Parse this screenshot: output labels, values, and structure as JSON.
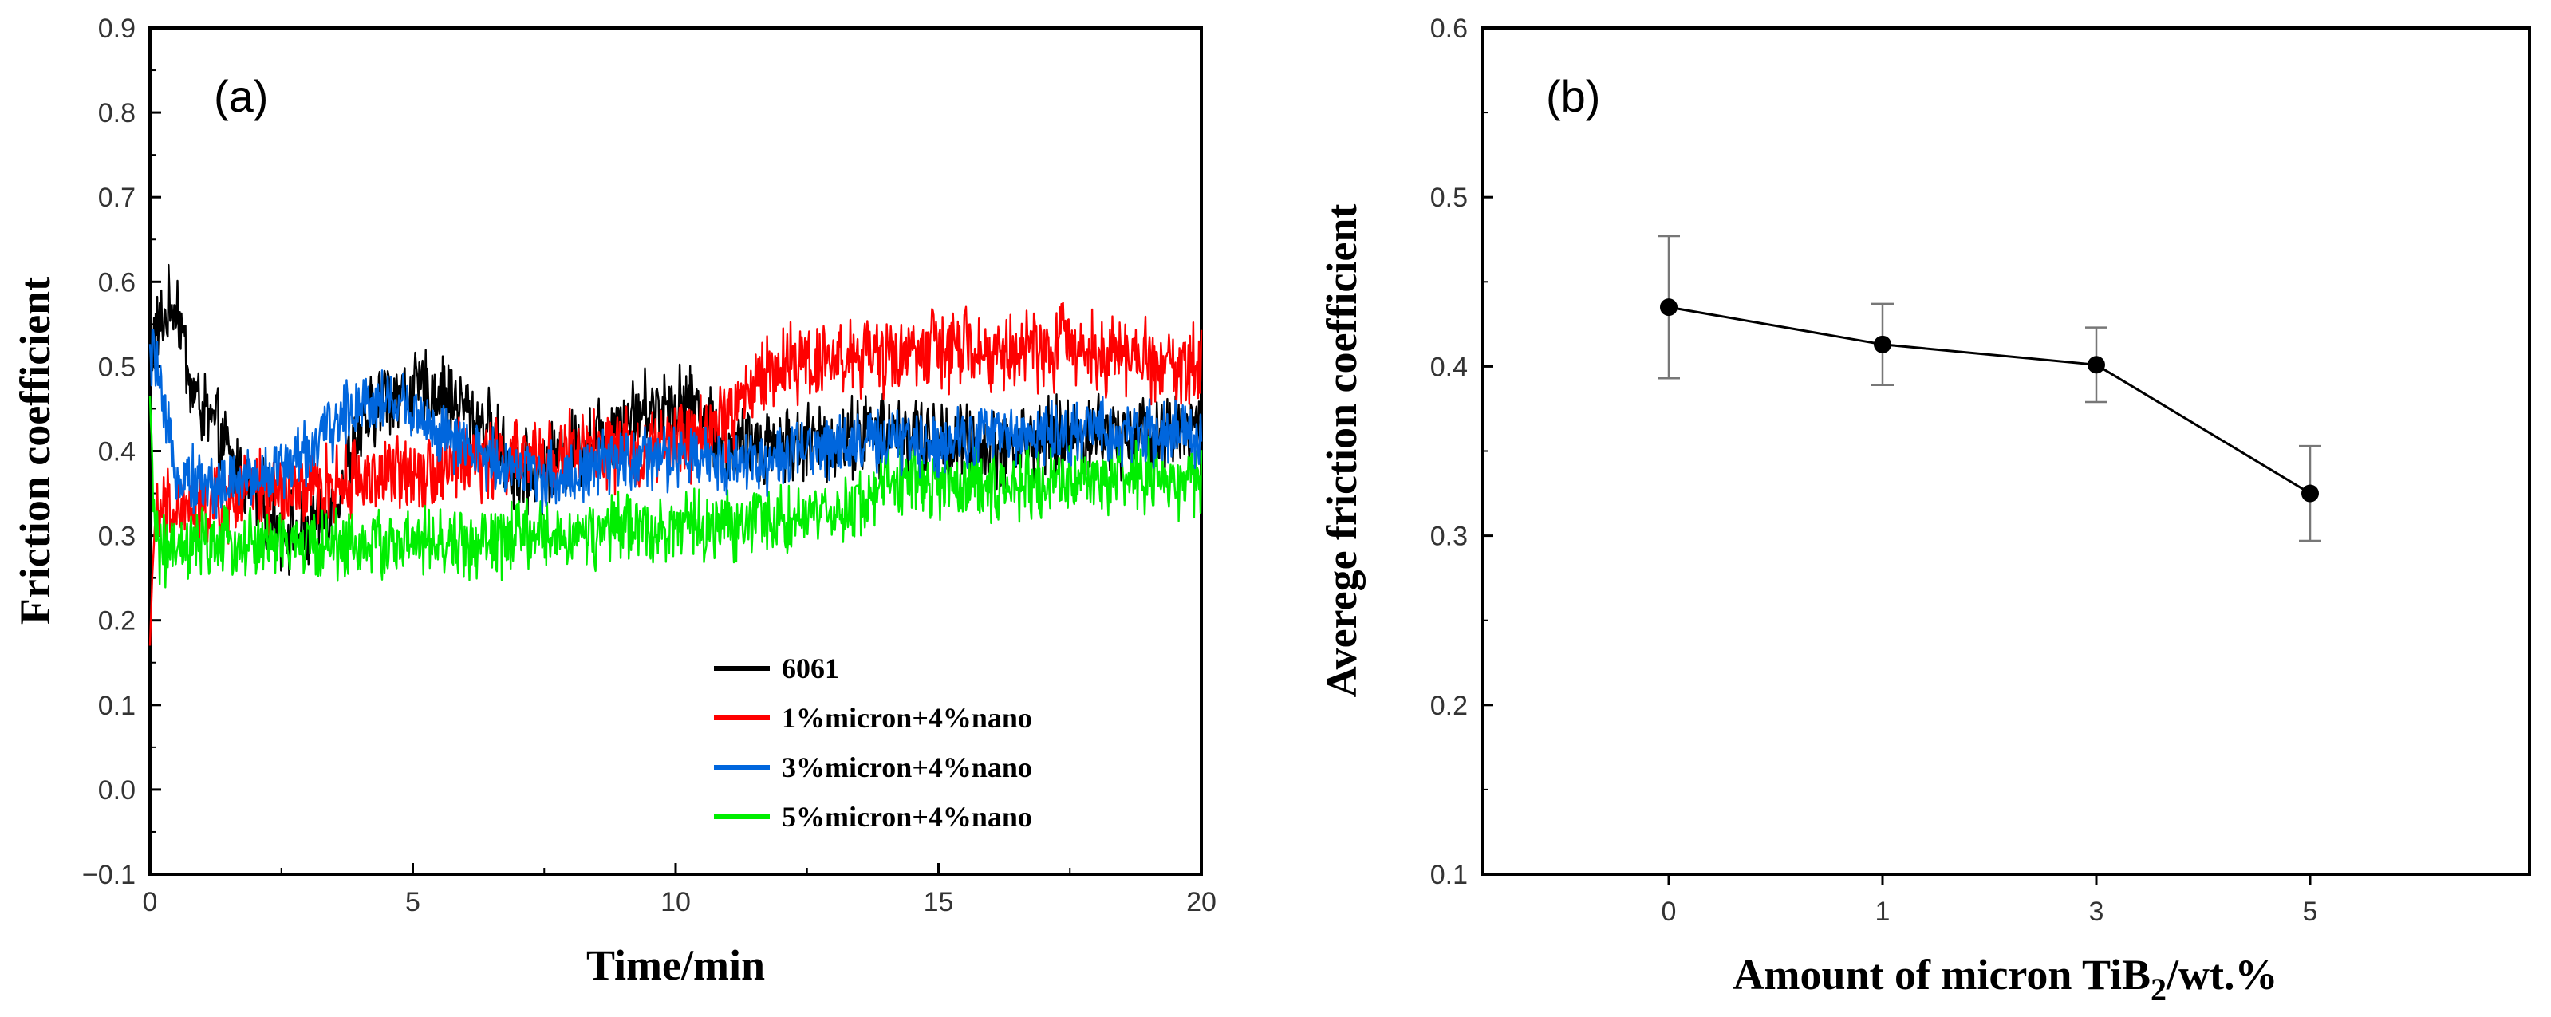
{
  "chart_data": [
    {
      "type": "line",
      "panel_label": "(a)",
      "xlabel": "Time/min",
      "ylabel": "Friction coefficient",
      "xlim": [
        0,
        20
      ],
      "ylim": [
        -0.1,
        0.9
      ],
      "x_ticks": [
        "0",
        "5",
        "10",
        "15",
        "20"
      ],
      "y_ticks": [
        "−0.1",
        "0.0",
        "0.1",
        "0.2",
        "0.3",
        "0.4",
        "0.5",
        "0.6",
        "0.7",
        "0.8",
        "0.9"
      ],
      "legend_position": "bottom-right",
      "series": [
        {
          "name": "6061",
          "color": "#000000",
          "x": [
            0,
            0.2,
            0.5,
            0.8,
            1.0,
            1.3,
            1.6,
            2.0,
            2.5,
            3.0,
            3.5,
            4.0,
            4.5,
            5.0,
            5.5,
            6.0,
            6.5,
            7.0,
            7.5,
            8.0,
            8.5,
            9.0,
            9.5,
            10.0,
            10.5,
            11.0,
            11.5,
            12.0,
            12.5,
            13.0,
            13.5,
            14.0,
            14.5,
            15.0,
            15.5,
            16.0,
            16.5,
            17.0,
            17.5,
            18.0,
            18.5,
            19.0,
            19.5,
            20.0
          ],
          "values": [
            0.52,
            0.55,
            0.58,
            0.47,
            0.45,
            0.42,
            0.38,
            0.35,
            0.31,
            0.3,
            0.34,
            0.42,
            0.47,
            0.47,
            0.47,
            0.45,
            0.42,
            0.37,
            0.38,
            0.4,
            0.42,
            0.44,
            0.45,
            0.46,
            0.45,
            0.4,
            0.41,
            0.41,
            0.41,
            0.41,
            0.42,
            0.42,
            0.42,
            0.41,
            0.41,
            0.4,
            0.41,
            0.41,
            0.42,
            0.42,
            0.42,
            0.42,
            0.43,
            0.43
          ]
        },
        {
          "name": "1%micron+4%nano",
          "color": "#ff0000",
          "x": [
            0,
            0.05,
            0.1,
            0.3,
            0.6,
            1.0,
            1.5,
            2.0,
            2.5,
            3.0,
            3.5,
            4.0,
            4.5,
            5.0,
            5.5,
            6.0,
            6.5,
            7.0,
            7.5,
            8.0,
            8.5,
            9.0,
            9.5,
            10.0,
            10.5,
            11.0,
            11.5,
            12.0,
            12.5,
            13.0,
            13.5,
            14.0,
            14.5,
            15.0,
            15.5,
            16.0,
            16.5,
            17.0,
            17.5,
            18.0,
            18.5,
            19.0,
            19.5,
            20.0
          ],
          "values": [
            0.17,
            0.26,
            0.32,
            0.33,
            0.33,
            0.33,
            0.34,
            0.35,
            0.35,
            0.35,
            0.36,
            0.37,
            0.37,
            0.38,
            0.38,
            0.39,
            0.39,
            0.39,
            0.39,
            0.4,
            0.4,
            0.4,
            0.4,
            0.41,
            0.42,
            0.44,
            0.48,
            0.5,
            0.51,
            0.51,
            0.51,
            0.51,
            0.52,
            0.52,
            0.52,
            0.51,
            0.52,
            0.52,
            0.53,
            0.52,
            0.51,
            0.51,
            0.5,
            0.5
          ]
        },
        {
          "name": "3%micron+4%nano",
          "color": "#0066dd",
          "x": [
            0,
            0.1,
            0.25,
            0.5,
            1.0,
            1.5,
            2.0,
            2.5,
            3.0,
            3.5,
            4.0,
            4.5,
            5.0,
            5.5,
            6.0,
            6.5,
            7.0,
            7.5,
            8.0,
            8.5,
            9.0,
            9.5,
            10.0,
            10.5,
            11.0,
            11.5,
            12.0,
            12.5,
            13.0,
            13.5,
            14.0,
            14.5,
            15.0,
            15.5,
            16.0,
            16.5,
            17.0,
            17.5,
            18.0,
            18.5,
            19.0,
            19.5,
            20.0
          ],
          "values": [
            0.5,
            0.52,
            0.44,
            0.38,
            0.36,
            0.36,
            0.37,
            0.38,
            0.4,
            0.43,
            0.46,
            0.46,
            0.45,
            0.42,
            0.4,
            0.39,
            0.38,
            0.37,
            0.37,
            0.38,
            0.39,
            0.39,
            0.39,
            0.39,
            0.39,
            0.39,
            0.39,
            0.4,
            0.41,
            0.41,
            0.41,
            0.41,
            0.41,
            0.42,
            0.42,
            0.42,
            0.42,
            0.42,
            0.42,
            0.42,
            0.42,
            0.42,
            0.42
          ]
        },
        {
          "name": "5%micron+4%nano",
          "color": "#00ee00",
          "x": [
            0,
            0.05,
            0.15,
            0.3,
            0.6,
            1.0,
            1.5,
            2.0,
            2.5,
            3.0,
            3.5,
            4.0,
            4.5,
            5.0,
            5.5,
            6.0,
            6.5,
            7.0,
            7.5,
            8.0,
            8.5,
            9.0,
            9.5,
            10.0,
            10.5,
            11.0,
            11.5,
            12.0,
            12.5,
            13.0,
            13.5,
            14.0,
            14.5,
            15.0,
            15.5,
            16.0,
            16.5,
            17.0,
            17.5,
            18.0,
            18.5,
            19.0,
            19.5,
            20.0
          ],
          "values": [
            0.44,
            0.36,
            0.29,
            0.28,
            0.28,
            0.29,
            0.29,
            0.29,
            0.29,
            0.29,
            0.29,
            0.29,
            0.29,
            0.29,
            0.29,
            0.29,
            0.29,
            0.3,
            0.3,
            0.3,
            0.3,
            0.31,
            0.31,
            0.31,
            0.31,
            0.31,
            0.32,
            0.32,
            0.32,
            0.32,
            0.34,
            0.36,
            0.37,
            0.36,
            0.36,
            0.36,
            0.36,
            0.36,
            0.37,
            0.37,
            0.37,
            0.37,
            0.36,
            0.36
          ]
        }
      ]
    },
    {
      "type": "line",
      "panel_label": "(b)",
      "xlabel": "Amount of micron TiB",
      "xlabel_subscript": "2",
      "xlabel_suffix": "/wt.%",
      "ylabel": "Averege friction coefficient",
      "categories": [
        "0",
        "1",
        "3",
        "5"
      ],
      "values": [
        0.435,
        0.413,
        0.401,
        0.325
      ],
      "error": [
        0.042,
        0.024,
        0.022,
        0.028
      ],
      "ylim": [
        0.1,
        0.6
      ],
      "y_ticks": [
        "0.1",
        "0.2",
        "0.3",
        "0.4",
        "0.5",
        "0.6"
      ],
      "series_color": "#000000",
      "errorbar_color": "#777777"
    }
  ]
}
